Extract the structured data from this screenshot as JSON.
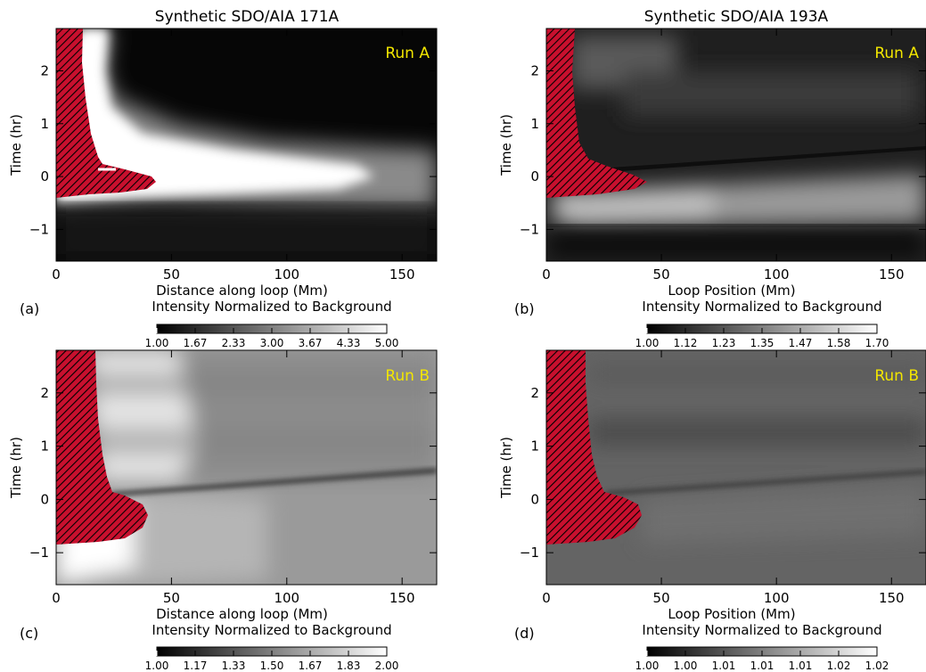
{
  "figure": {
    "column_titles": [
      "Synthetic SDO/AIA 171A",
      "Synthetic SDO/AIA 193A"
    ]
  },
  "chart_data": [
    {
      "type": "heatmap",
      "panel_label": "(a)",
      "run_label": "Run A",
      "xlabel": "Distance along loop (Mm)",
      "ylabel": "Time (hr)",
      "xlim": [
        0,
        165
      ],
      "ylim": [
        -1.6,
        2.8
      ],
      "x_ticks": [
        0,
        50,
        100,
        150
      ],
      "y_ticks": [
        -1,
        0,
        1,
        2
      ],
      "colorbar": {
        "label": "Intensity Normalized to Background",
        "tick_labels": [
          "1.00",
          "1.67",
          "2.33",
          "3.00",
          "3.67",
          "4.33",
          "5.00"
        ],
        "range": [
          1.0,
          5.0
        ]
      },
      "features": {
        "hatched_region": "excluded (hatched red) region near loop footpoint",
        "bright_band_center_hr": 0.0
      }
    },
    {
      "type": "heatmap",
      "panel_label": "(b)",
      "run_label": "Run A",
      "xlabel": "Loop Position (Mm)",
      "ylabel": "Time (hr)",
      "xlim": [
        0,
        165
      ],
      "ylim": [
        -1.6,
        2.8
      ],
      "x_ticks": [
        0,
        50,
        100,
        150
      ],
      "y_ticks": [
        -1,
        0,
        1,
        2
      ],
      "colorbar": {
        "label": "Intensity Normalized to Background",
        "tick_labels": [
          "1.00",
          "1.12",
          "1.23",
          "1.35",
          "1.47",
          "1.58",
          "1.70"
        ],
        "range": [
          1.0,
          1.7
        ]
      }
    },
    {
      "type": "heatmap",
      "panel_label": "(c)",
      "run_label": "Run B",
      "xlabel": "Distance along loop (Mm)",
      "ylabel": "Time (hr)",
      "xlim": [
        0,
        165
      ],
      "ylim": [
        -1.6,
        2.8
      ],
      "x_ticks": [
        0,
        50,
        100,
        150
      ],
      "y_ticks": [
        -1,
        0,
        1,
        2
      ],
      "colorbar": {
        "label": "Intensity Normalized to Background",
        "tick_labels": [
          "1.00",
          "1.17",
          "1.33",
          "1.50",
          "1.67",
          "1.83",
          "2.00"
        ],
        "range": [
          1.0,
          2.0
        ]
      }
    },
    {
      "type": "heatmap",
      "panel_label": "(d)",
      "run_label": "Run B",
      "xlabel": "Loop Position (Mm)",
      "ylabel": "Time (hr)",
      "xlim": [
        0,
        165
      ],
      "ylim": [
        -1.6,
        2.8
      ],
      "x_ticks": [
        0,
        50,
        100,
        150
      ],
      "y_ticks": [
        -1,
        0,
        1,
        2
      ],
      "colorbar": {
        "label": "Intensity Normalized to Background",
        "tick_labels": [
          "1.00",
          "1.00",
          "1.01",
          "1.01",
          "1.01",
          "1.02",
          "1.02"
        ],
        "range": [
          1.0,
          1.02
        ]
      }
    }
  ],
  "colors": {
    "hatch_red": "#c8102e",
    "run_label_yellow": "#f2e600"
  }
}
